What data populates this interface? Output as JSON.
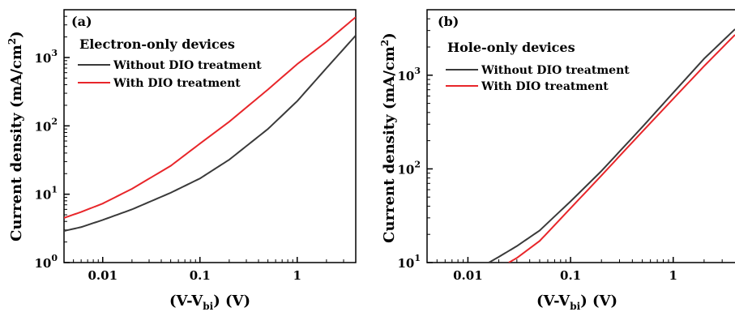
{
  "chart_data": [
    {
      "type": "line",
      "panel_label": "(a)",
      "title": "Electron-only devices",
      "xlabel": "(V-V",
      "xlabel_sub": "bi",
      "xlabel_unit": ") (V)",
      "ylabel": "Current density (mA/cm",
      "ylabel_sup": "2",
      "ylabel_end": ")",
      "x_scale": "log",
      "y_scale": "log",
      "xlim": [
        0.004,
        4
      ],
      "ylim": [
        1,
        5000
      ],
      "x_ticks": [
        {
          "value": 0.01,
          "label": "0.01"
        },
        {
          "value": 0.1,
          "label": "0.1"
        },
        {
          "value": 1,
          "label": "1"
        }
      ],
      "y_ticks": [
        {
          "value": 1,
          "base": "10",
          "exp": "0"
        },
        {
          "value": 10,
          "base": "10",
          "exp": "1"
        },
        {
          "value": 100,
          "base": "10",
          "exp": "2"
        },
        {
          "value": 1000,
          "base": "10",
          "exp": "3"
        }
      ],
      "legend_position": "top-left",
      "series": [
        {
          "name": "Without DIO treatment",
          "color": "#3a3a3a",
          "x": [
            0.004,
            0.006,
            0.01,
            0.02,
            0.05,
            0.1,
            0.2,
            0.5,
            1,
            2,
            4
          ],
          "y": [
            2.9,
            3.3,
            4.2,
            6.0,
            10.5,
            17,
            32,
            90,
            230,
            700,
            2100
          ]
        },
        {
          "name": "With DIO treatment",
          "color": "#e8262a",
          "x": [
            0.004,
            0.006,
            0.01,
            0.02,
            0.05,
            0.1,
            0.2,
            0.5,
            1,
            2,
            4
          ],
          "y": [
            4.5,
            5.5,
            7.3,
            12,
            26,
            55,
            115,
            340,
            800,
            1700,
            3900
          ]
        }
      ]
    },
    {
      "type": "line",
      "panel_label": "(b)",
      "title": "Hole-only devices",
      "xlabel": "(V-V",
      "xlabel_sub": "bi",
      "xlabel_unit": ") (V)",
      "ylabel": "Current density (mA/cm",
      "ylabel_sup": "2",
      "ylabel_end": ")",
      "x_scale": "log",
      "y_scale": "log",
      "xlim": [
        0.004,
        4
      ],
      "ylim": [
        10,
        5000
      ],
      "x_ticks": [
        {
          "value": 0.01,
          "label": "0.01"
        },
        {
          "value": 0.1,
          "label": "0.1"
        },
        {
          "value": 1,
          "label": "1"
        }
      ],
      "y_ticks": [
        {
          "value": 10,
          "base": "10",
          "exp": "1"
        },
        {
          "value": 100,
          "base": "10",
          "exp": "2"
        },
        {
          "value": 1000,
          "base": "10",
          "exp": "3"
        }
      ],
      "legend_position": "top-left",
      "series": [
        {
          "name": "Without DIO treatment",
          "color": "#3a3a3a",
          "x": [
            0.016,
            0.02,
            0.03,
            0.05,
            0.1,
            0.2,
            0.5,
            1,
            2,
            4
          ],
          "y": [
            10,
            11.5,
            15,
            22,
            45,
            95,
            280,
            650,
            1500,
            3100
          ]
        },
        {
          "name": "With DIO treatment",
          "color": "#e8262a",
          "x": [
            0.025,
            0.03,
            0.05,
            0.1,
            0.2,
            0.5,
            1,
            2,
            4
          ],
          "y": [
            10,
            11.2,
            17,
            38,
            85,
            250,
            560,
            1250,
            2700
          ]
        }
      ]
    }
  ]
}
